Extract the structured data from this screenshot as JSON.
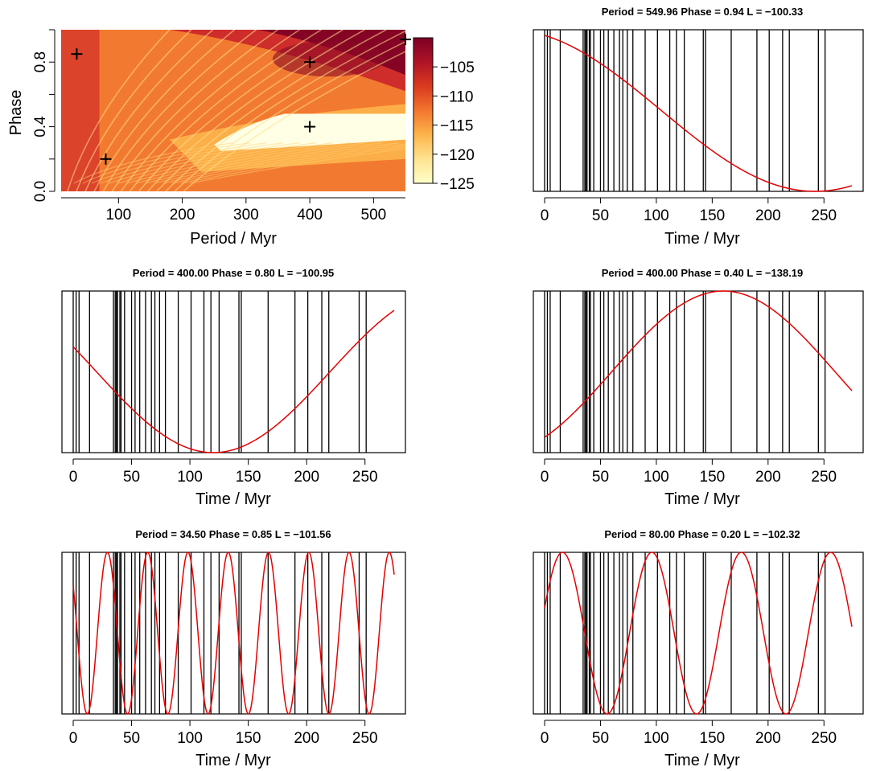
{
  "chart_data": [
    {
      "type": "heatmap",
      "title": "",
      "xlabel": "Period / Myr",
      "ylabel": "Phase",
      "xlim": [
        10,
        550
      ],
      "ylim": [
        0,
        1
      ],
      "xticks": [
        100,
        200,
        300,
        400,
        500
      ],
      "yticks": [
        0.0,
        0.4,
        0.8
      ],
      "ytick_labels": [
        "0.0",
        "0.4",
        "0.8"
      ],
      "colorbar": {
        "range": [
          -125,
          -100
        ],
        "ticks": [
          -105,
          -110,
          -115,
          -120,
          -125
        ],
        "tick_labels": [
          "−105",
          "−110",
          "−115",
          "−120",
          "−125"
        ],
        "colors": [
          "#FFFFC8",
          "#FEE391",
          "#FDB44B",
          "#F3762E",
          "#DA3A1F",
          "#AE1326",
          "#7D0025"
        ]
      },
      "markers": [
        {
          "period": 549.96,
          "phase": 0.94
        },
        {
          "period": 400.0,
          "phase": 0.8
        },
        {
          "period": 400.0,
          "phase": 0.4
        },
        {
          "period": 34.5,
          "phase": 0.85
        },
        {
          "period": 80.0,
          "phase": 0.2
        }
      ]
    },
    {
      "type": "line",
      "title": "Period = 549.96 Phase = 0.94 L = −100.33",
      "xlabel": "Time / Myr",
      "period": 549.96,
      "phase": 0.94,
      "xlim": [
        0,
        275
      ],
      "xticks": [
        0,
        50,
        100,
        150,
        200,
        250
      ]
    },
    {
      "type": "line",
      "title": "Period = 400.00 Phase = 0.80 L = −100.95",
      "xlabel": "Time / Myr",
      "period": 400.0,
      "phase": 0.8,
      "xlim": [
        0,
        275
      ],
      "xticks": [
        0,
        50,
        100,
        150,
        200,
        250
      ]
    },
    {
      "type": "line",
      "title": "Period = 400.00 Phase = 0.40 L = −138.19",
      "xlabel": "Time / Myr",
      "period": 400.0,
      "phase": 0.4,
      "xlim": [
        0,
        275
      ],
      "xticks": [
        0,
        50,
        100,
        150,
        200,
        250
      ]
    },
    {
      "type": "line",
      "title": "Period = 34.50 Phase = 0.85 L = −101.56",
      "xlabel": "Time / Myr",
      "period": 34.5,
      "phase": 0.85,
      "xlim": [
        0,
        275
      ],
      "xticks": [
        0,
        50,
        100,
        150,
        200,
        250
      ]
    },
    {
      "type": "line",
      "title": "Period = 80.00 Phase = 0.20 L = −102.32",
      "xlabel": "Time / Myr",
      "period": 80.0,
      "phase": 0.2,
      "xlim": [
        0,
        275
      ],
      "xticks": [
        0,
        50,
        100,
        150,
        200,
        250
      ]
    }
  ],
  "events": [
    0,
    2.5,
    5,
    14,
    34.5,
    36,
    37,
    38,
    40,
    41,
    44,
    50,
    53,
    57,
    62,
    67,
    70,
    74,
    79,
    90,
    101,
    112,
    118,
    125,
    142,
    144,
    167,
    190,
    201,
    213,
    219,
    245,
    251
  ],
  "colors": {
    "curve": "#E60000",
    "axes": "#000000",
    "event": "#000000",
    "marker": "#000000"
  }
}
